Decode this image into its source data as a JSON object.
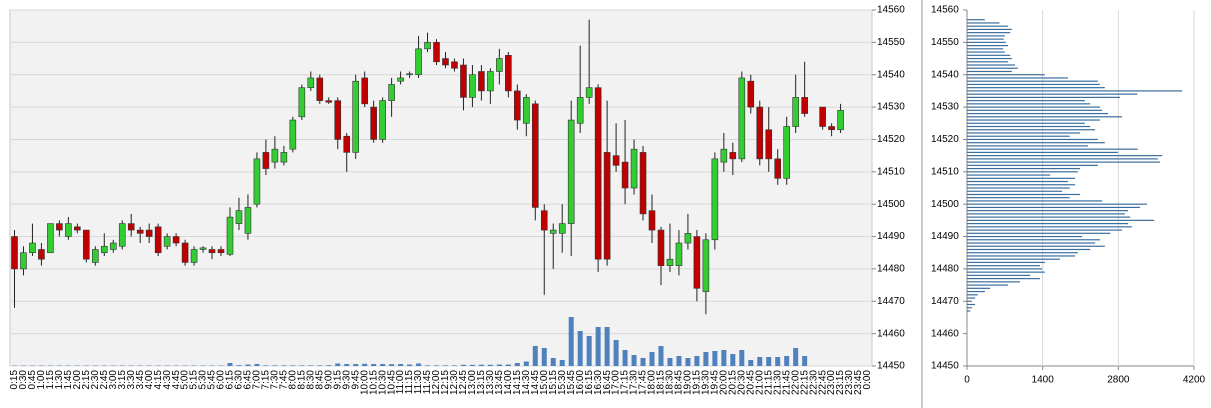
{
  "chart_data": [
    {
      "type": "candlestick",
      "categories": [
        "0:15",
        "0:30",
        "0:45",
        "1:00",
        "1:15",
        "1:30",
        "1:45",
        "2:00",
        "2:15",
        "2:30",
        "2:45",
        "3:00",
        "3:15",
        "3:30",
        "3:45",
        "4:00",
        "4:15",
        "4:30",
        "4:45",
        "5:00",
        "5:15",
        "5:30",
        "5:45",
        "6:00",
        "6:15",
        "6:30",
        "6:45",
        "7:00",
        "7:15",
        "7:30",
        "7:45",
        "8:00",
        "8:15",
        "8:30",
        "8:45",
        "9:00",
        "9:15",
        "9:30",
        "9:45",
        "10:00",
        "10:15",
        "10:30",
        "10:45",
        "11:00",
        "11:15",
        "11:30",
        "11:45",
        "12:00",
        "12:15",
        "12:30",
        "12:45",
        "13:00",
        "13:15",
        "13:30",
        "13:45",
        "14:00",
        "14:15",
        "14:30",
        "14:45",
        "15:00",
        "15:15",
        "15:30",
        "15:45",
        "16:00",
        "16:15",
        "16:30",
        "16:45",
        "17:00",
        "17:15",
        "17:30",
        "17:45",
        "18:00",
        "18:15",
        "18:30",
        "18:45",
        "19:00",
        "19:15",
        "19:30",
        "19:45",
        "20:00",
        "20:15",
        "20:30",
        "20:45",
        "21:00",
        "21:15",
        "21:30",
        "21:45",
        "22:00",
        "22:15",
        "22:30",
        "22:45",
        "23:00",
        "23:15",
        "23:30",
        "23:45",
        "0:00"
      ],
      "open": [
        14490,
        14480,
        14485,
        14486,
        14485,
        14494,
        14490,
        14493,
        14492,
        14482,
        14485,
        14486,
        14487,
        14494,
        14492,
        14492,
        14493,
        14487,
        14490,
        14488,
        14482,
        14486,
        14486,
        14486,
        14484.5,
        14494,
        14491,
        14500,
        14516,
        14513,
        14513,
        14517,
        14527,
        14536,
        14539,
        14532,
        14532,
        14521,
        14516,
        14539,
        14530,
        14520,
        14532,
        14538,
        14540,
        14540,
        14548,
        14550,
        14545,
        14544,
        14543,
        14533,
        14541,
        14535,
        14541,
        14546,
        14535,
        14525,
        14531,
        14498,
        14491,
        14491,
        14494,
        14525,
        14533,
        14536,
        14516,
        14515,
        14513,
        14505,
        14516,
        14498,
        14492,
        14481,
        14481,
        14488,
        14490,
        14473,
        14489,
        14513,
        14516,
        14514,
        14538,
        14530,
        14523,
        14514,
        14508,
        14524,
        14533,
        null,
        14530,
        14524,
        14523,
        null,
        null,
        null
      ],
      "high": [
        14492,
        14487,
        14494,
        14488,
        14494,
        14495,
        14496,
        14494,
        14492,
        14487,
        14491,
        14489,
        14495,
        14497,
        14493,
        14494,
        14494,
        14491,
        14491,
        14489,
        14487,
        14487,
        14487,
        14487,
        14499,
        14502,
        14503,
        14516,
        14520,
        14521,
        14518,
        14527,
        14537,
        14541,
        14540,
        14533,
        14533,
        14522,
        14540,
        14541,
        14532,
        14533,
        14539,
        14541,
        14541,
        14552,
        14553,
        14551,
        14547,
        14545,
        14545,
        14543,
        14543,
        14542,
        14548,
        14547,
        14537,
        14534,
        14532,
        14500,
        14494,
        14500,
        14532,
        14549,
        14557,
        14537,
        14532,
        14525,
        14526,
        14520,
        14518,
        14503,
        14493,
        14494,
        14492,
        14497,
        14492,
        14491,
        14516,
        14522,
        14519,
        14541,
        14540,
        14532,
        14530,
        14517,
        14527,
        14540,
        14544,
        null,
        14530,
        14525,
        14531,
        null,
        null,
        null
      ],
      "low": [
        14468,
        14478,
        14484,
        14481,
        14485,
        14490,
        14489,
        14491,
        14482,
        14481,
        14484,
        14485,
        14486,
        14490,
        14488,
        14488,
        14484,
        14486,
        14487,
        14481,
        14481,
        14485,
        14483,
        14484,
        14484,
        14492,
        14489,
        14499,
        14509,
        14511,
        14512,
        14516,
        14526,
        14535,
        14531,
        14531,
        14517,
        14510,
        14514,
        14530,
        14519,
        14519,
        14527,
        14537,
        14539,
        14539,
        14547,
        14543,
        14542,
        14541,
        14529,
        14530,
        14532,
        14531,
        14537,
        14533,
        14523,
        14521,
        14495,
        14472,
        14480,
        14485,
        14484,
        14522,
        14531,
        14479,
        14481,
        14510,
        14500,
        14503,
        14495,
        14488,
        14475,
        14479,
        14478,
        14486,
        14470,
        14466,
        14486,
        14510,
        14509,
        14513,
        14528,
        14512,
        14510,
        14506,
        14506,
        14522,
        14527,
        null,
        14523,
        14521,
        14522,
        null,
        null,
        null
      ],
      "close": [
        14480,
        14485,
        14488,
        14483,
        14494,
        14492,
        14494,
        14492,
        14483,
        14486,
        14487,
        14488,
        14494,
        14492,
        14491,
        14490,
        14485,
        14490,
        14488,
        14482,
        14486,
        14486.5,
        14485,
        14485,
        14496,
        14498,
        14499,
        14514,
        14511,
        14517,
        14516,
        14526,
        14536,
        14539,
        14532,
        14531.5,
        14520,
        14516,
        14538,
        14531,
        14520,
        14532,
        14537,
        14539,
        14540.3,
        14548,
        14550,
        14544,
        14543,
        14542,
        14533,
        14540,
        14535,
        14541,
        14545,
        14535,
        14526,
        14533,
        14499,
        14492,
        14492,
        14494,
        14526,
        14533,
        14536,
        14483,
        14483,
        14512,
        14505,
        14517,
        14497,
        14492,
        14481,
        14483,
        14488,
        14491,
        14474,
        14489,
        14514,
        14517,
        14514,
        14539,
        14530,
        14514,
        14514,
        14508,
        14524,
        14533,
        14528,
        null,
        14524,
        14523,
        14529,
        null,
        null,
        null
      ],
      "volume": [
        40,
        40,
        40,
        40,
        40,
        40,
        40,
        40,
        40,
        40,
        40,
        40,
        40,
        40,
        40,
        40,
        40,
        40,
        40,
        40,
        40,
        40,
        40,
        40,
        300,
        80,
        150,
        200,
        60,
        60,
        60,
        60,
        60,
        60,
        60,
        80,
        250,
        200,
        200,
        220,
        200,
        200,
        180,
        200,
        150,
        250,
        60,
        60,
        60,
        60,
        120,
        120,
        130,
        120,
        150,
        150,
        300,
        450,
        2000,
        1800,
        800,
        600,
        4900,
        3500,
        3000,
        3900,
        3900,
        2600,
        1600,
        1100,
        800,
        1400,
        2000,
        800,
        1000,
        800,
        1000,
        1400,
        1500,
        1600,
        1200,
        1600,
        600,
        900,
        900,
        900,
        1000,
        1800,
        1000,
        null,
        null,
        null,
        null,
        null,
        null,
        null
      ],
      "up_color": "#33cc33",
      "down_color": "#c00000",
      "volume_color": "#4f81bd",
      "ylim": [
        14450,
        14560
      ],
      "yticks": [
        14450,
        14460,
        14470,
        14480,
        14490,
        14500,
        14510,
        14520,
        14530,
        14540,
        14550,
        14560
      ],
      "grid": true
    },
    {
      "type": "hbar",
      "y": [
        14557,
        14556,
        14555,
        14554,
        14553,
        14552,
        14551,
        14550,
        14549,
        14548,
        14547,
        14546,
        14545,
        14544,
        14543,
        14542,
        14541,
        14540,
        14539,
        14538,
        14537,
        14536,
        14535,
        14534,
        14533,
        14532,
        14531,
        14530,
        14529,
        14528,
        14527,
        14526,
        14525,
        14524,
        14523,
        14522,
        14521,
        14520,
        14519,
        14518,
        14517,
        14516,
        14515,
        14514,
        14513,
        14512,
        14511,
        14510,
        14509,
        14508,
        14507,
        14506,
        14505,
        14504,
        14503,
        14502,
        14501,
        14500,
        14499,
        14498,
        14497,
        14496,
        14495,
        14494,
        14493,
        14492,
        14491,
        14490,
        14489,
        14488,
        14487,
        14486,
        14485,
        14484,
        14483,
        14482,
        14481,
        14480,
        14479,
        14478,
        14477,
        14476,
        14475,
        14474,
        14473,
        14472,
        14471,
        14470,
        14469,
        14468,
        14467
      ],
      "values": [
        330,
        600,
        760,
        830,
        800,
        700,
        680,
        720,
        760,
        670,
        700,
        800,
        830,
        760,
        890,
        940,
        830,
        1440,
        1870,
        2420,
        2460,
        2550,
        3980,
        3150,
        2830,
        2180,
        2280,
        2460,
        2500,
        2610,
        2870,
        2460,
        2180,
        2280,
        2370,
        2090,
        1900,
        2420,
        2550,
        2240,
        3160,
        2790,
        3610,
        3530,
        3570,
        2420,
        2090,
        2050,
        1540,
        2000,
        1870,
        2000,
        1900,
        1760,
        2090,
        1900,
        2500,
        3330,
        3200,
        2980,
        2920,
        3020,
        3460,
        2980,
        3050,
        2870,
        2650,
        2130,
        2460,
        2370,
        2550,
        2280,
        2050,
        2000,
        1720,
        1440,
        1350,
        1390,
        1440,
        1170,
        1350,
        980,
        760,
        430,
        330,
        200,
        150,
        90,
        150,
        90,
        60
      ],
      "color": "#3b6e9e",
      "xlim": [
        0,
        4200
      ],
      "xticks": [
        0,
        1400,
        2800,
        4200
      ],
      "ylim": [
        14450,
        14560
      ],
      "yticks": [
        14450,
        14460,
        14470,
        14480,
        14490,
        14500,
        14510,
        14520,
        14530,
        14540,
        14550,
        14560
      ],
      "grid": true
    }
  ]
}
